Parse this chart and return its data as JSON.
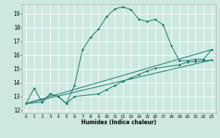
{
  "title": "",
  "xlabel": "Humidex (Indice chaleur)",
  "bg_color": "#cce8e0",
  "grid_color": "#ffffff",
  "line_color": "#1a7a6a",
  "xlim": [
    -0.5,
    23.5
  ],
  "ylim": [
    11.8,
    19.7
  ],
  "yticks": [
    12,
    13,
    14,
    15,
    16,
    17,
    18,
    19
  ],
  "xticks": [
    0,
    1,
    2,
    3,
    4,
    5,
    6,
    7,
    8,
    9,
    10,
    11,
    12,
    13,
    14,
    15,
    16,
    17,
    18,
    19,
    20,
    21,
    22,
    23
  ],
  "series1_x": [
    0,
    1,
    2,
    3,
    4,
    5,
    6,
    7,
    8,
    9,
    10,
    11,
    12,
    13,
    14,
    15,
    16,
    17,
    18,
    19,
    20,
    21,
    22,
    23
  ],
  "series1_y": [
    12.5,
    13.6,
    12.6,
    13.2,
    13.0,
    12.5,
    13.8,
    16.4,
    17.3,
    17.9,
    18.8,
    19.35,
    19.5,
    19.3,
    18.6,
    18.45,
    18.6,
    18.2,
    16.7,
    15.6,
    15.6,
    15.7,
    15.7,
    16.4
  ],
  "series2_x": [
    0,
    2,
    3,
    4,
    5,
    6,
    9,
    10,
    11,
    12,
    13,
    14,
    15,
    16,
    19,
    20,
    21,
    22,
    23
  ],
  "series2_y": [
    12.5,
    12.6,
    13.2,
    13.0,
    12.5,
    13.0,
    13.2,
    13.5,
    13.8,
    14.1,
    14.35,
    14.6,
    14.85,
    15.05,
    15.3,
    15.5,
    15.55,
    15.6,
    15.65
  ],
  "series3_x": [
    0,
    23
  ],
  "series3_y": [
    12.5,
    15.65
  ],
  "series4_x": [
    0,
    23
  ],
  "series4_y": [
    12.5,
    16.4
  ]
}
